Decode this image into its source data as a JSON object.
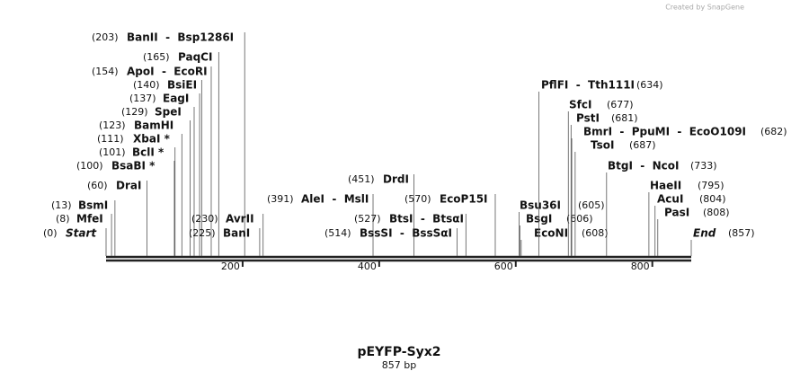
{
  "credit": "Created by SnapGene",
  "title": "pEYFP-Syx2",
  "subtitle": "857 bp",
  "length": 857,
  "scale_ticks": [
    200,
    400,
    600,
    800
  ],
  "sites": [
    {
      "position": 0,
      "position_label": "(0)",
      "name": "Start"
    },
    {
      "position": 8,
      "position_label": "(8)",
      "name": "MfeI"
    },
    {
      "position": 13,
      "position_label": "(13)",
      "name": "BsmI"
    },
    {
      "position": 60,
      "position_label": "(60)",
      "name": "DraI"
    },
    {
      "position": 100,
      "position_label": "(100)",
      "name": "BsaBI *"
    },
    {
      "position": 101,
      "position_label": "(101)",
      "name": "BclI *"
    },
    {
      "position": 111,
      "position_label": "(111)",
      "name": "XbaI *"
    },
    {
      "position": 123,
      "position_label": "(123)",
      "name": "BamHI"
    },
    {
      "position": 129,
      "position_label": "(129)",
      "name": "SpeI"
    },
    {
      "position": 137,
      "position_label": "(137)",
      "name": "EagI"
    },
    {
      "position": 140,
      "position_label": "(140)",
      "name": "BsiEI"
    },
    {
      "position": 154,
      "position_label": "(154)",
      "name": "ApoI  -  EcoRI"
    },
    {
      "position": 165,
      "position_label": "(165)",
      "name": "PaqCI"
    },
    {
      "position": 203,
      "position_label": "(203)",
      "name": "BanII  -  Bsp1286I"
    },
    {
      "position": 225,
      "position_label": "(225)",
      "name": "BanI"
    },
    {
      "position": 230,
      "position_label": "(230)",
      "name": "AvrII"
    },
    {
      "position": 391,
      "position_label": "(391)",
      "name": "AleI  -  MslI"
    },
    {
      "position": 451,
      "position_label": "(451)",
      "name": "DrdI"
    },
    {
      "position": 514,
      "position_label": "(514)",
      "name": "BssSI  -  BssSαI"
    },
    {
      "position": 527,
      "position_label": "(527)",
      "name": "BtsI  -  BtsαI"
    },
    {
      "position": 570,
      "position_label": "(570)",
      "name": "EcoP15I"
    },
    {
      "position": 605,
      "position_label": "(605)",
      "name": "Bsu36I"
    },
    {
      "position": 606,
      "position_label": "(606)",
      "name": "BsgI"
    },
    {
      "position": 608,
      "position_label": "(608)",
      "name": "EcoNI"
    },
    {
      "position": 634,
      "position_label": "(634)",
      "name": "PflFI  -  Tth111I"
    },
    {
      "position": 677,
      "position_label": "(677)",
      "name": "SfcI"
    },
    {
      "position": 681,
      "position_label": "(681)",
      "name": "PstI"
    },
    {
      "position": 682,
      "position_label": "(682)",
      "name": "BmrI  -  PpuMI  -  EcoO109I"
    },
    {
      "position": 687,
      "position_label": "(687)",
      "name": "TsoI"
    },
    {
      "position": 733,
      "position_label": "(733)",
      "name": "BtgI  -  NcoI"
    },
    {
      "position": 795,
      "position_label": "(795)",
      "name": "HaeII"
    },
    {
      "position": 804,
      "position_label": "(804)",
      "name": "AcuI"
    },
    {
      "position": 808,
      "position_label": "(808)",
      "name": "PasI"
    },
    {
      "position": 857,
      "position_label": "(857)",
      "name": "End"
    }
  ]
}
